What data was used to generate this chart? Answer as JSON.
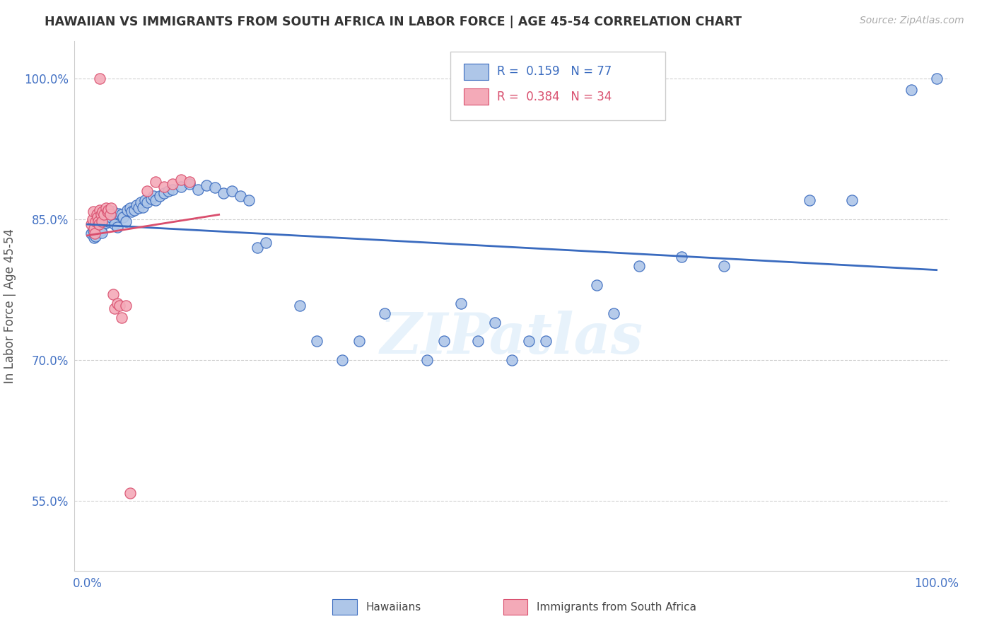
{
  "title": "HAWAIIAN VS IMMIGRANTS FROM SOUTH AFRICA IN LABOR FORCE | AGE 45-54 CORRELATION CHART",
  "source": "Source: ZipAtlas.com",
  "ylabel": "In Labor Force | Age 45-54",
  "xlim": [
    -0.015,
    1.015
  ],
  "ylim": [
    0.475,
    1.04
  ],
  "yticks": [
    0.55,
    0.7,
    0.85,
    1.0
  ],
  "ytick_labels": [
    "55.0%",
    "70.0%",
    "85.0%",
    "100.0%"
  ],
  "xticks": [
    0.0,
    1.0
  ],
  "xtick_labels": [
    "0.0%",
    "100.0%"
  ],
  "hawaiian_R": 0.159,
  "hawaiian_N": 77,
  "south_africa_R": 0.384,
  "south_africa_N": 34,
  "hawaiian_color": "#aec6e8",
  "south_africa_color": "#f4aab8",
  "trend_hawaiian_color": "#3a6bbf",
  "trend_south_africa_color": "#d94f6e",
  "background_color": "#ffffff",
  "watermark": "ZIPatlas",
  "tick_color": "#4472c4",
  "grid_color": "#cccccc",
  "title_color": "#333333",
  "source_color": "#aaaaaa",
  "ylabel_color": "#555555"
}
